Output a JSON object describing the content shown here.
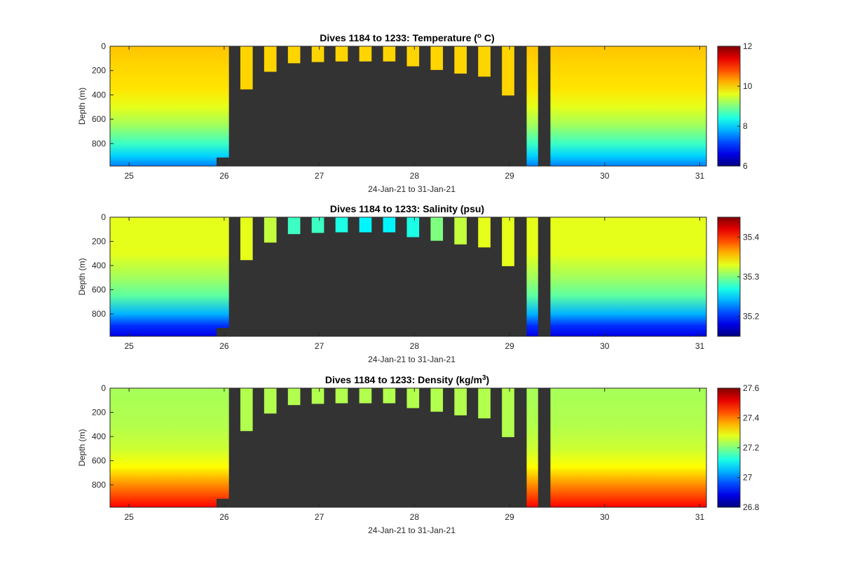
{
  "chart_data": [
    {
      "type": "heatmap",
      "title": "Dives 1184 to 1233: Temperature (",
      "title_sup": "o",
      "title_end": " C)",
      "xlabel": "24-Jan-21 to 31-Jan-21",
      "ylabel": "Depth (m)",
      "xlim": [
        24.8,
        31.07
      ],
      "ylim": [
        0,
        985
      ],
      "xticks": [
        25,
        26,
        27,
        28,
        29,
        30,
        31
      ],
      "yticks": [
        0,
        200,
        400,
        600,
        800
      ],
      "colorbar_range": [
        6,
        12
      ],
      "colorbar_ticks": [
        6,
        8,
        10,
        12
      ],
      "colorscale": "jet",
      "field": "temperature",
      "profile": [
        [
          0,
          10.1
        ],
        [
          150,
          10.0
        ],
        [
          350,
          9.9
        ],
        [
          500,
          9.6
        ],
        [
          650,
          9.2
        ],
        [
          800,
          8.6
        ],
        [
          900,
          8.0
        ],
        [
          985,
          7.5
        ]
      ],
      "center_depth_values": [
        10.0,
        10.0,
        10.0,
        10.0,
        10.0,
        10.0,
        10.0,
        10.0,
        10.0,
        10.0,
        10.0,
        10.0
      ]
    },
    {
      "type": "heatmap",
      "title": "Dives 1184 to 1233: Salinity (psu)",
      "title_sup": "",
      "title_end": "",
      "xlabel": "24-Jan-21 to 31-Jan-21",
      "ylabel": "Depth (m)",
      "xlim": [
        24.8,
        31.07
      ],
      "ylim": [
        0,
        985
      ],
      "xticks": [
        25,
        26,
        27,
        28,
        29,
        30,
        31
      ],
      "yticks": [
        0,
        200,
        400,
        600,
        800
      ],
      "colorbar_range": [
        35.15,
        35.45
      ],
      "colorbar_ticks": [
        35.2,
        35.3,
        35.4
      ],
      "colorscale": "jet",
      "field": "salinity",
      "profile": [
        [
          0,
          35.33
        ],
        [
          300,
          35.33
        ],
        [
          500,
          35.31
        ],
        [
          650,
          35.29
        ],
        [
          800,
          35.24
        ],
        [
          900,
          35.2
        ],
        [
          985,
          35.18
        ]
      ],
      "center_depth_values": [
        35.33,
        35.32,
        35.28,
        35.28,
        35.27,
        35.26,
        35.26,
        35.27,
        35.3,
        35.32,
        35.33,
        35.33
      ]
    },
    {
      "type": "heatmap",
      "title": "Dives 1184 to 1233: Density (kg/m",
      "title_sup": "3",
      "title_end": ")",
      "xlabel": "24-Jan-21 to 31-Jan-21",
      "ylabel": "Depth (m)",
      "xlim": [
        24.8,
        31.07
      ],
      "ylim": [
        0,
        985
      ],
      "xticks": [
        25,
        26,
        27,
        28,
        29,
        30,
        31
      ],
      "yticks": [
        0,
        200,
        400,
        600,
        800
      ],
      "colorbar_range": [
        26.8,
        27.6
      ],
      "colorbar_ticks": [
        26.8,
        27,
        27.2,
        27.4,
        27.6
      ],
      "colorscale": "jet",
      "field": "density",
      "profile": [
        [
          0,
          27.23
        ],
        [
          300,
          27.24
        ],
        [
          500,
          27.26
        ],
        [
          650,
          27.3
        ],
        [
          750,
          27.36
        ],
        [
          850,
          27.42
        ],
        [
          985,
          27.5
        ]
      ],
      "center_depth_values": [
        27.24,
        27.24,
        27.24,
        27.24,
        27.24,
        27.24,
        27.24,
        27.24,
        27.24,
        27.24,
        27.24,
        27.24
      ]
    }
  ],
  "shared": {
    "no_data_color": "#333333",
    "coverage": {
      "left_block": [
        24.8,
        26.05
      ],
      "right_block": [
        29.43,
        31.07
      ],
      "wide_dive": [
        29.18,
        29.3
      ],
      "shallow_dives": [
        {
          "x": [
            26.17,
            26.3
          ],
          "max_depth": 355
        },
        {
          "x": [
            26.42,
            26.55
          ],
          "max_depth": 210
        },
        {
          "x": [
            26.67,
            26.8
          ],
          "max_depth": 140
        },
        {
          "x": [
            26.92,
            27.05
          ],
          "max_depth": 130
        },
        {
          "x": [
            27.17,
            27.3
          ],
          "max_depth": 125
        },
        {
          "x": [
            27.42,
            27.55
          ],
          "max_depth": 125
        },
        {
          "x": [
            27.67,
            27.8
          ],
          "max_depth": 125
        },
        {
          "x": [
            27.92,
            28.05
          ],
          "max_depth": 165
        },
        {
          "x": [
            28.17,
            28.3
          ],
          "max_depth": 195
        },
        {
          "x": [
            28.42,
            28.55
          ],
          "max_depth": 225
        },
        {
          "x": [
            28.67,
            28.8
          ],
          "max_depth": 250
        },
        {
          "x": [
            28.92,
            29.05
          ],
          "max_depth": 405
        }
      ]
    }
  }
}
